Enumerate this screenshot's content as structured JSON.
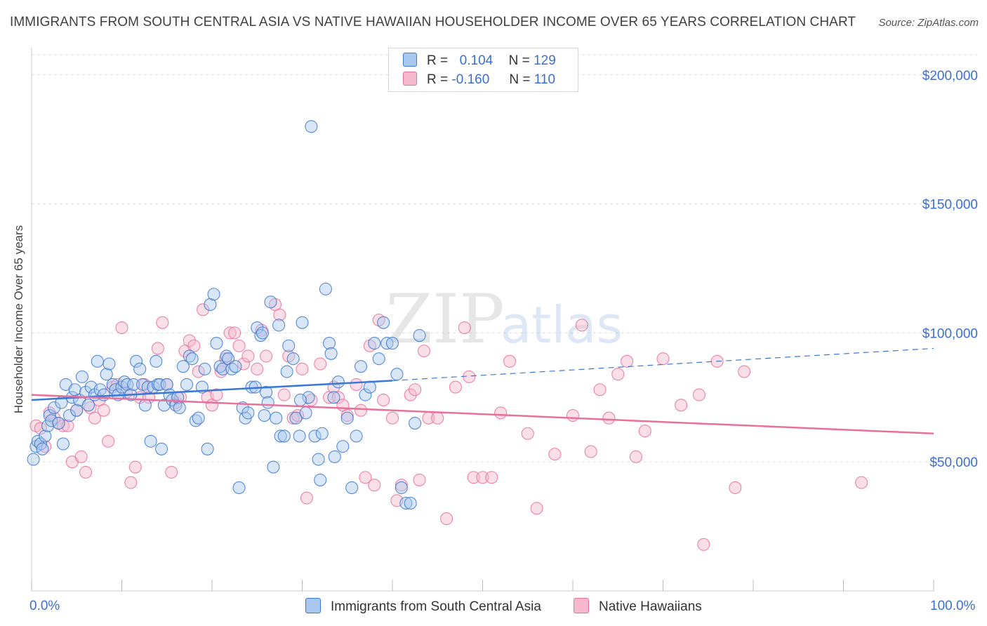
{
  "title": "IMMIGRANTS FROM SOUTH CENTRAL ASIA VS NATIVE HAWAIIAN HOUSEHOLDER INCOME OVER 65 YEARS CORRELATION CHART",
  "source": "Source: ZipAtlas.com",
  "watermark": {
    "zip": "ZIP",
    "atlas": "atlas"
  },
  "colors": {
    "blue": "#3a78d6",
    "blue_fill": "#a9c8f0",
    "pink": "#e8709a",
    "pink_fill": "#f5b8cc",
    "tick_text": "#3a6fd1"
  },
  "legend": {
    "rows": [
      {
        "r_label": "R =",
        "r_value": "0.104",
        "n_label": "N =",
        "n_value": "129"
      },
      {
        "r_label": "R =",
        "r_value": "-0.160",
        "n_label": "N =",
        "n_value": "110"
      }
    ]
  },
  "bottom_legend": {
    "series1": "Immigrants from South Central Asia",
    "series2": "Native Hawaiians"
  },
  "chart_data": {
    "type": "scatter",
    "title": "IMMIGRANTS FROM SOUTH CENTRAL ASIA VS NATIVE HAWAIIAN HOUSEHOLDER INCOME OVER 65 YEARS CORRELATION CHART",
    "xlabel": "",
    "ylabel": "Householder Income Over 65 years",
    "xlim": [
      0,
      100
    ],
    "ylim": [
      0,
      210000
    ],
    "x_tick_labels": [
      "0.0%",
      "100.0%"
    ],
    "y_ticks": [
      50000,
      100000,
      150000,
      200000
    ],
    "y_tick_labels": [
      "$50,000",
      "$100,000",
      "$150,000",
      "$200,000"
    ],
    "grid": "horizontal dashed",
    "legend_position": "top-center",
    "series": [
      {
        "name": "Immigrants from South Central Asia",
        "r": 0.104,
        "n": 129,
        "trend": {
          "x0": 0,
          "y0": 74000,
          "x1": 40,
          "y1": 81500,
          "dashed_to_x": 100,
          "dashed_to_y": 94000
        },
        "points": [
          [
            0.2,
            51000
          ],
          [
            0.5,
            56000
          ],
          [
            0.7,
            58000
          ],
          [
            1.0,
            57000
          ],
          [
            1.2,
            55000
          ],
          [
            1.5,
            60000
          ],
          [
            1.8,
            64000
          ],
          [
            2.0,
            68000
          ],
          [
            2.2,
            66000
          ],
          [
            2.5,
            71000
          ],
          [
            3.0,
            65000
          ],
          [
            3.3,
            73000
          ],
          [
            3.5,
            57000
          ],
          [
            3.8,
            80000
          ],
          [
            4.2,
            68000
          ],
          [
            4.5,
            75000
          ],
          [
            4.8,
            78000
          ],
          [
            5.0,
            70000
          ],
          [
            5.3,
            74000
          ],
          [
            5.6,
            83000
          ],
          [
            6.0,
            77000
          ],
          [
            6.3,
            72000
          ],
          [
            6.6,
            79000
          ],
          [
            7.0,
            76000
          ],
          [
            7.3,
            89000
          ],
          [
            7.6,
            78000
          ],
          [
            8.0,
            76000
          ],
          [
            8.3,
            84000
          ],
          [
            8.6,
            88000
          ],
          [
            9.0,
            80000
          ],
          [
            9.3,
            78000
          ],
          [
            9.6,
            76000
          ],
          [
            10.0,
            79000
          ],
          [
            10.3,
            81000
          ],
          [
            10.6,
            80000
          ],
          [
            11.0,
            76000
          ],
          [
            11.3,
            80000
          ],
          [
            11.6,
            89000
          ],
          [
            12.0,
            86000
          ],
          [
            12.3,
            80000
          ],
          [
            12.6,
            72000
          ],
          [
            12.9,
            79000
          ],
          [
            13.2,
            58000
          ],
          [
            13.5,
            79000
          ],
          [
            13.8,
            89000
          ],
          [
            14.0,
            80000
          ],
          [
            14.2,
            80000
          ],
          [
            14.4,
            55000
          ],
          [
            14.7,
            72000
          ],
          [
            15.0,
            80000
          ],
          [
            15.3,
            76000
          ],
          [
            15.6,
            74000
          ],
          [
            16.0,
            72000
          ],
          [
            16.2,
            75000
          ],
          [
            16.4,
            71000
          ],
          [
            16.8,
            87000
          ],
          [
            17.2,
            80000
          ],
          [
            17.5,
            91000
          ],
          [
            17.8,
            90000
          ],
          [
            18.2,
            66000
          ],
          [
            18.5,
            67000
          ],
          [
            18.9,
            79000
          ],
          [
            19.2,
            86000
          ],
          [
            19.5,
            55000
          ],
          [
            19.8,
            111000
          ],
          [
            20.2,
            115000
          ],
          [
            20.5,
            96000
          ],
          [
            20.9,
            87000
          ],
          [
            21.2,
            86000
          ],
          [
            21.6,
            91000
          ],
          [
            21.8,
            90000
          ],
          [
            22.2,
            86000
          ],
          [
            22.6,
            87000
          ],
          [
            23.0,
            40000
          ],
          [
            23.4,
            71000
          ],
          [
            23.7,
            67000
          ],
          [
            24.0,
            69000
          ],
          [
            24.4,
            79000
          ],
          [
            24.8,
            79000
          ],
          [
            25.0,
            102000
          ],
          [
            25.4,
            99000
          ],
          [
            25.6,
            100000
          ],
          [
            26.0,
            77000
          ],
          [
            26.2,
            73000
          ],
          [
            26.5,
            112000
          ],
          [
            26.8,
            48000
          ],
          [
            27.1,
            67000
          ],
          [
            27.4,
            103000
          ],
          [
            27.6,
            60000
          ],
          [
            28.0,
            60000
          ],
          [
            28.3,
            85000
          ],
          [
            28.5,
            95000
          ],
          [
            29.0,
            90000
          ],
          [
            29.3,
            67000
          ],
          [
            29.7,
            60000
          ],
          [
            30.0,
            104000
          ],
          [
            30.4,
            69000
          ],
          [
            30.7,
            75000
          ],
          [
            31.0,
            180000
          ],
          [
            31.4,
            60000
          ],
          [
            31.8,
            51000
          ],
          [
            32.2,
            61000
          ],
          [
            32.6,
            117000
          ],
          [
            33.0,
            96000
          ],
          [
            33.2,
            92000
          ],
          [
            33.6,
            52000
          ],
          [
            34.0,
            81000
          ],
          [
            34.5,
            56000
          ],
          [
            35.0,
            67000
          ],
          [
            35.5,
            40000
          ],
          [
            36.0,
            60000
          ],
          [
            36.5,
            87000
          ],
          [
            37.0,
            76000
          ],
          [
            37.5,
            79000
          ],
          [
            38.0,
            96000
          ],
          [
            38.5,
            90000
          ],
          [
            39.0,
            104000
          ],
          [
            39.4,
            96000
          ],
          [
            40.0,
            96000
          ],
          [
            40.5,
            84000
          ],
          [
            41.0,
            40000
          ],
          [
            41.5,
            34000
          ],
          [
            42.0,
            34000
          ],
          [
            42.5,
            65000
          ],
          [
            43.0,
            99000
          ],
          [
            32.0,
            43000
          ],
          [
            33.5,
            75000
          ],
          [
            25.8,
            68000
          ],
          [
            29.8,
            74000
          ]
        ]
      },
      {
        "name": "Native Hawaiians",
        "r": -0.16,
        "n": 110,
        "trend": {
          "x0": 0,
          "y0": 76000,
          "x1": 100,
          "y1": 61000
        },
        "points": [
          [
            0.5,
            64000
          ],
          [
            1.0,
            63000
          ],
          [
            1.5,
            56000
          ],
          [
            2.0,
            69000
          ],
          [
            2.5,
            67000
          ],
          [
            3.0,
            65000
          ],
          [
            3.5,
            64000
          ],
          [
            4.0,
            64000
          ],
          [
            4.5,
            50000
          ],
          [
            5.0,
            70000
          ],
          [
            5.5,
            52000
          ],
          [
            6.0,
            46000
          ],
          [
            6.5,
            71000
          ],
          [
            7.0,
            67000
          ],
          [
            7.5,
            74000
          ],
          [
            8.0,
            70000
          ],
          [
            8.5,
            58000
          ],
          [
            9.0,
            79000
          ],
          [
            9.5,
            80000
          ],
          [
            10.0,
            102000
          ],
          [
            10.5,
            77000
          ],
          [
            11.0,
            42000
          ],
          [
            11.5,
            48000
          ],
          [
            12.0,
            75000
          ],
          [
            12.5,
            80000
          ],
          [
            13.0,
            75000
          ],
          [
            14.0,
            94000
          ],
          [
            14.5,
            104000
          ],
          [
            15.0,
            80000
          ],
          [
            15.5,
            46000
          ],
          [
            16.0,
            73000
          ],
          [
            16.5,
            75000
          ],
          [
            17.0,
            93000
          ],
          [
            17.5,
            97000
          ],
          [
            18.0,
            95000
          ],
          [
            18.5,
            85000
          ],
          [
            19.0,
            109000
          ],
          [
            19.5,
            75000
          ],
          [
            20.0,
            72000
          ],
          [
            20.5,
            76000
          ],
          [
            21.0,
            85000
          ],
          [
            21.5,
            90000
          ],
          [
            22.0,
            100000
          ],
          [
            22.5,
            100000
          ],
          [
            23.0,
            95000
          ],
          [
            23.5,
            88000
          ],
          [
            24.0,
            91000
          ],
          [
            25.0,
            86000
          ],
          [
            25.5,
            101000
          ],
          [
            26.0,
            91000
          ],
          [
            27.0,
            111000
          ],
          [
            27.5,
            107000
          ],
          [
            28.0,
            76000
          ],
          [
            28.5,
            91000
          ],
          [
            29.0,
            67000
          ],
          [
            29.5,
            68000
          ],
          [
            30.0,
            86000
          ],
          [
            30.5,
            36000
          ],
          [
            31.0,
            74000
          ],
          [
            32.0,
            88000
          ],
          [
            33.0,
            75000
          ],
          [
            33.5,
            79000
          ],
          [
            34.0,
            75000
          ],
          [
            34.5,
            72000
          ],
          [
            35.0,
            68000
          ],
          [
            36.0,
            80000
          ],
          [
            36.5,
            70000
          ],
          [
            37.0,
            44000
          ],
          [
            37.5,
            95000
          ],
          [
            38.0,
            41000
          ],
          [
            38.5,
            105000
          ],
          [
            39.0,
            74000
          ],
          [
            40.0,
            67000
          ],
          [
            40.5,
            35000
          ],
          [
            41.0,
            41000
          ],
          [
            42.0,
            76000
          ],
          [
            42.5,
            78000
          ],
          [
            43.0,
            43000
          ],
          [
            43.5,
            93000
          ],
          [
            44.0,
            67000
          ],
          [
            45.0,
            67000
          ],
          [
            46.0,
            28000
          ],
          [
            47.0,
            79000
          ],
          [
            48.0,
            102000
          ],
          [
            48.5,
            83000
          ],
          [
            49.0,
            44000
          ],
          [
            50.0,
            44000
          ],
          [
            51.0,
            44000
          ],
          [
            52.0,
            69000
          ],
          [
            53.0,
            89000
          ],
          [
            55.0,
            61000
          ],
          [
            56.0,
            32000
          ],
          [
            58.0,
            53000
          ],
          [
            60.0,
            68000
          ],
          [
            61.0,
            103000
          ],
          [
            62.0,
            54000
          ],
          [
            63.0,
            78000
          ],
          [
            64.0,
            67000
          ],
          [
            65.0,
            84000
          ],
          [
            66.0,
            89000
          ],
          [
            67.0,
            52000
          ],
          [
            68.0,
            62000
          ],
          [
            70.0,
            90000
          ],
          [
            72.0,
            72000
          ],
          [
            74.0,
            76000
          ],
          [
            74.5,
            18000
          ],
          [
            76.0,
            89000
          ],
          [
            78.0,
            40000
          ],
          [
            79.0,
            85000
          ],
          [
            92.0,
            42000
          ]
        ]
      }
    ]
  }
}
